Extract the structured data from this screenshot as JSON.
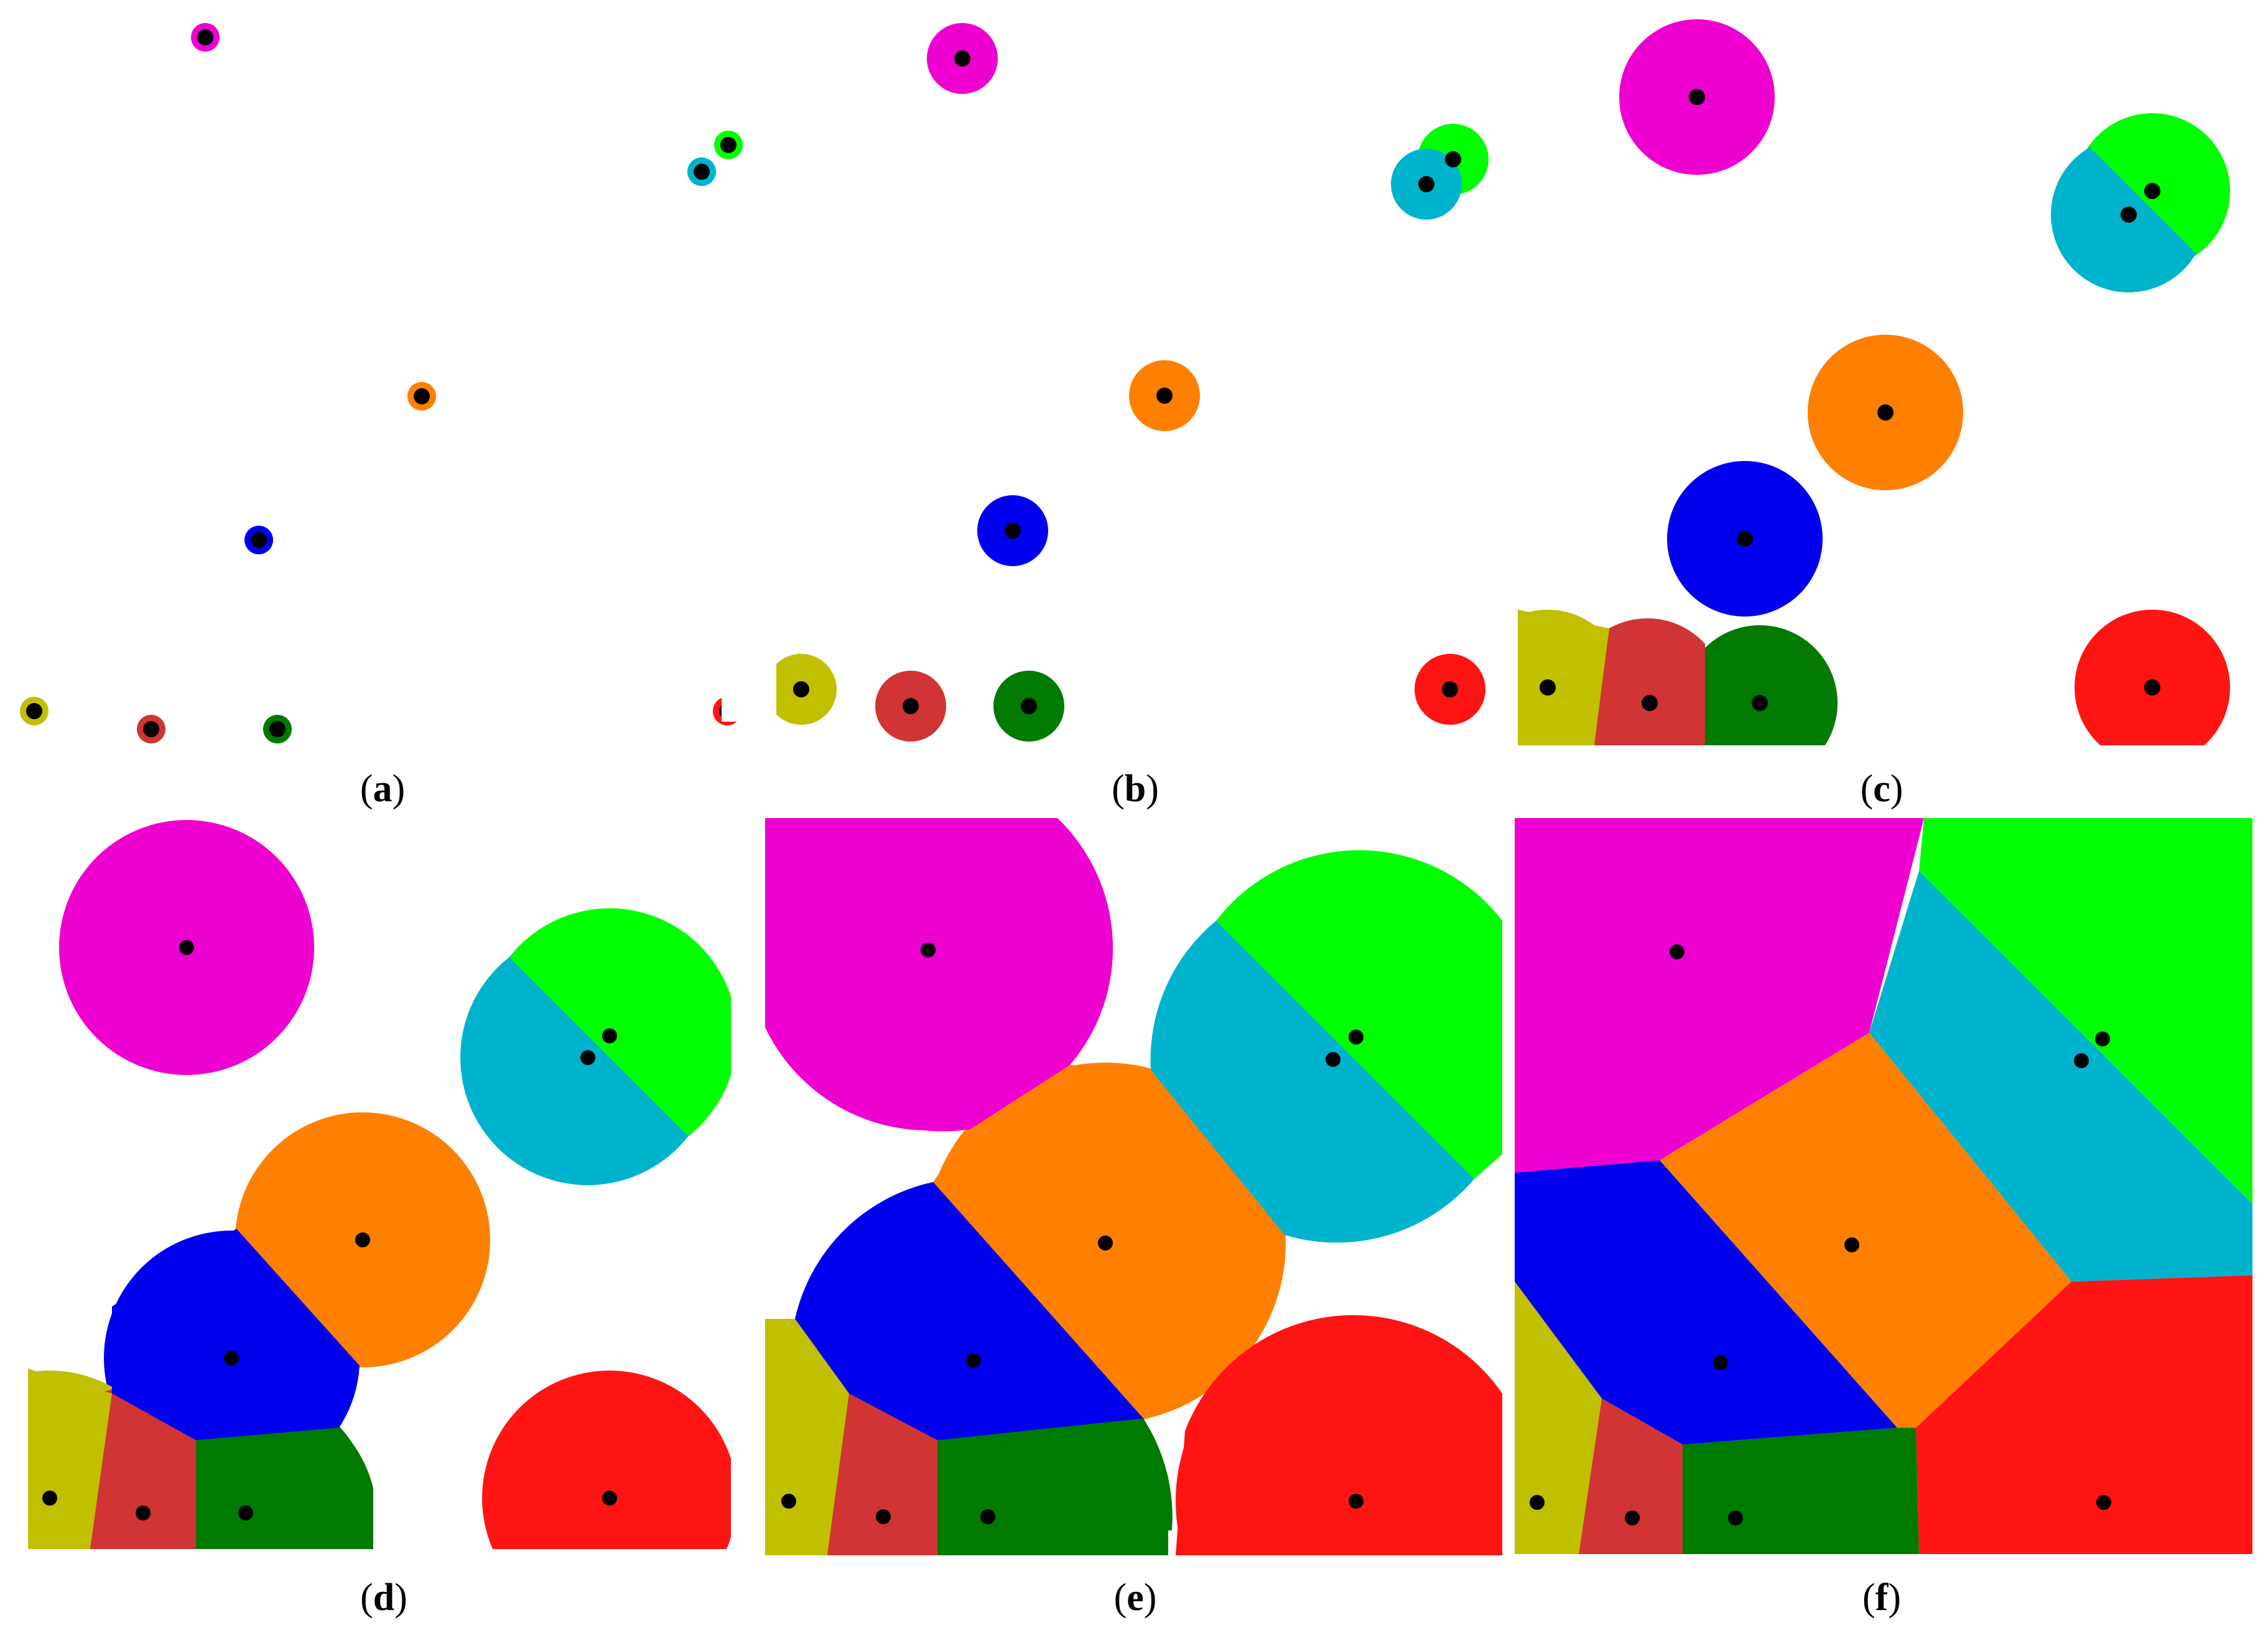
{
  "colors": {
    "magenta": "#ee00d0",
    "green": "#00ff00",
    "cyan": "#00b3cc",
    "orange": "#ff8000",
    "blue": "#0000ee",
    "olive": "#c0c000",
    "brick": "#d03434",
    "dark_green": "#007a00",
    "red": "#ff1414",
    "point": "#000000"
  },
  "panels": [
    {
      "id": "a",
      "caption_open": "(",
      "caption_letter": "a",
      "caption_close": ")"
    },
    {
      "id": "b",
      "caption_open": "(",
      "caption_letter": "b",
      "caption_close": ")"
    },
    {
      "id": "c",
      "caption_open": "(",
      "caption_letter": "c",
      "caption_close": ")"
    },
    {
      "id": "d",
      "caption_open": "(",
      "caption_letter": "d",
      "caption_close": ")"
    },
    {
      "id": "e",
      "caption_open": "(",
      "caption_letter": "e",
      "caption_close": ")"
    },
    {
      "id": "f",
      "caption_open": "(",
      "caption_letter": "f",
      "caption_close": ")"
    }
  ],
  "seeds": [
    "magenta",
    "green",
    "cyan",
    "orange",
    "blue",
    "olive",
    "brick",
    "dark_green",
    "red"
  ]
}
